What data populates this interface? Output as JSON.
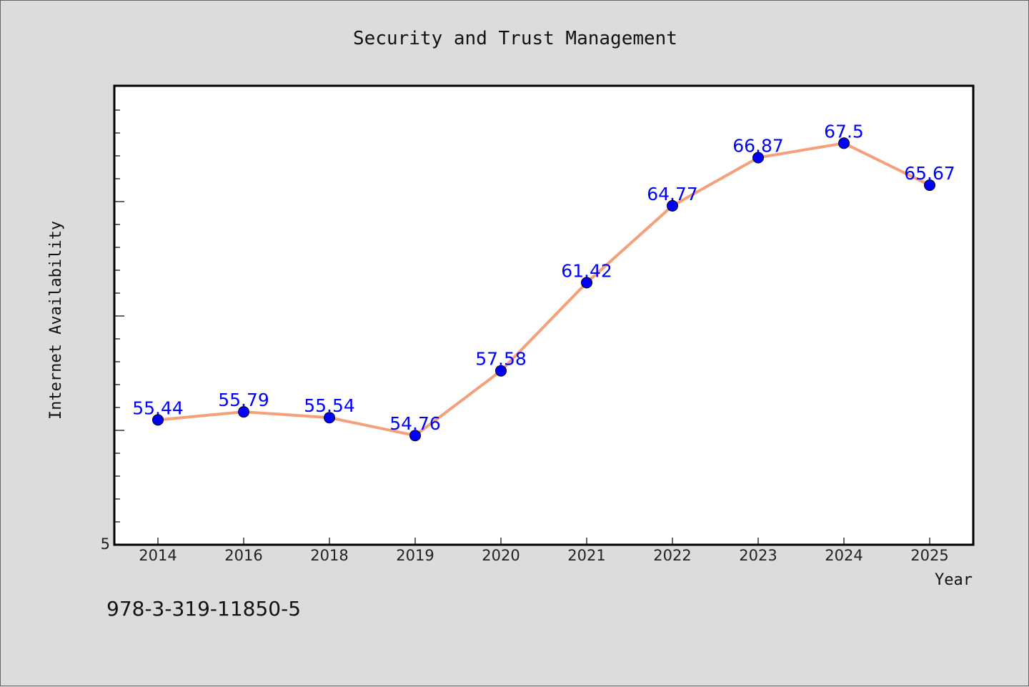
{
  "chart_data": {
    "type": "line",
    "title": "Security and Trust Management",
    "xlabel": "Year",
    "ylabel": "Internet Availability",
    "categories": [
      "2014",
      "2016",
      "2018",
      "2019",
      "2020",
      "2021",
      "2022",
      "2023",
      "2024",
      "2025"
    ],
    "series": [
      {
        "values": [
          55.44,
          55.79,
          55.54,
          54.76,
          57.58,
          61.42,
          64.77,
          66.87,
          67.5,
          65.67
        ],
        "data_labels": [
          "55.44",
          "55.79",
          "55.54",
          "54.76",
          "57.58",
          "61.42",
          "64.77",
          "66.87",
          "67.5",
          "65.67"
        ],
        "line_color": "#f4a07a",
        "marker_color": "#0000ff"
      }
    ],
    "ylim": [
      50,
      70
    ],
    "y_tick_labels": [
      "5"
    ],
    "grid": false,
    "legend": "none"
  },
  "footer": {
    "isbn": "978-3-319-11850-5"
  },
  "colors": {
    "background": "#dcdcdc",
    "plot_background": "#ffffff",
    "line": "#f4a07a",
    "marker": "#0000ff",
    "data_label": "#0000ff"
  }
}
